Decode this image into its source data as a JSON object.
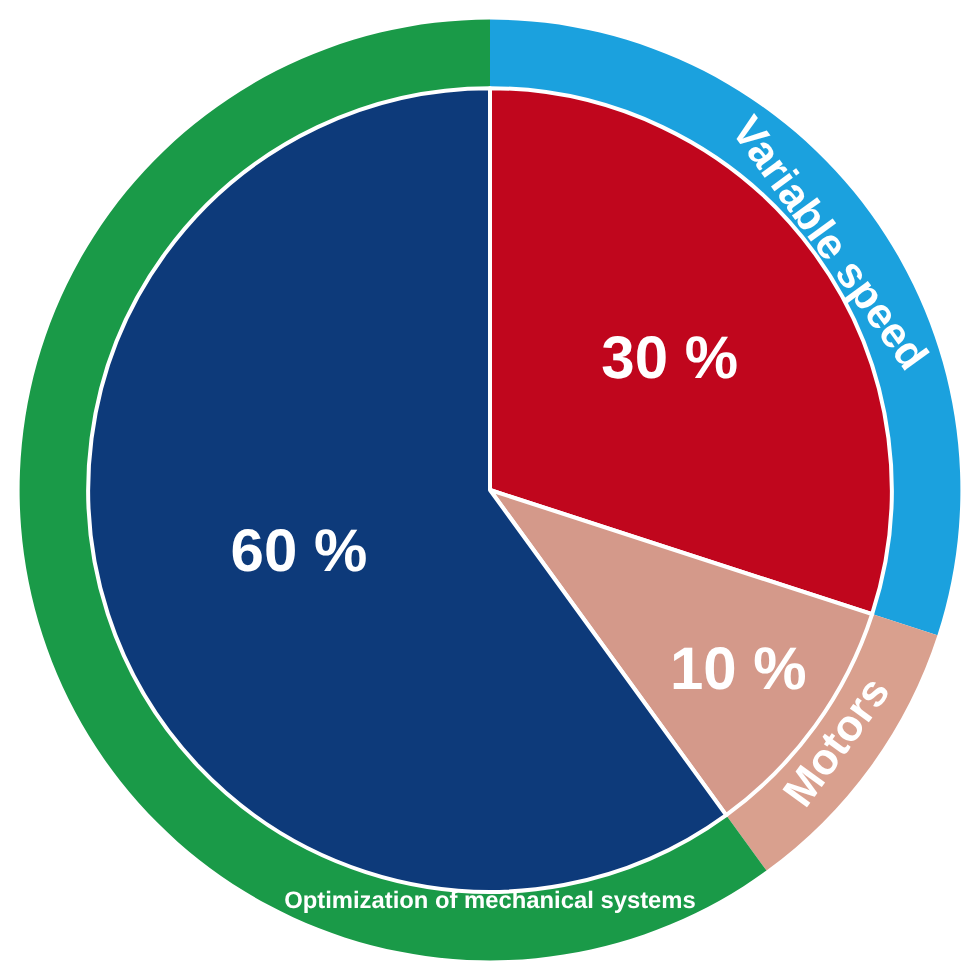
{
  "chart_data": {
    "type": "donut",
    "categories": [
      "Variable speed",
      "Motors",
      "Optimization of mechanical systems"
    ],
    "series": [
      {
        "colors": [
          "#1ba1de",
          "#d9a08e",
          "#1a9a48"
        ],
        "values": [
          30,
          10,
          60
        ]
      },
      {
        "type": "pie",
        "colors": [
          "#c0061d",
          "#d4998a",
          "#0d3a7a"
        ],
        "values": [
          30,
          10,
          60
        ],
        "value_labels": [
          "30 %",
          "10 %",
          "60 %"
        ]
      }
    ]
  }
}
